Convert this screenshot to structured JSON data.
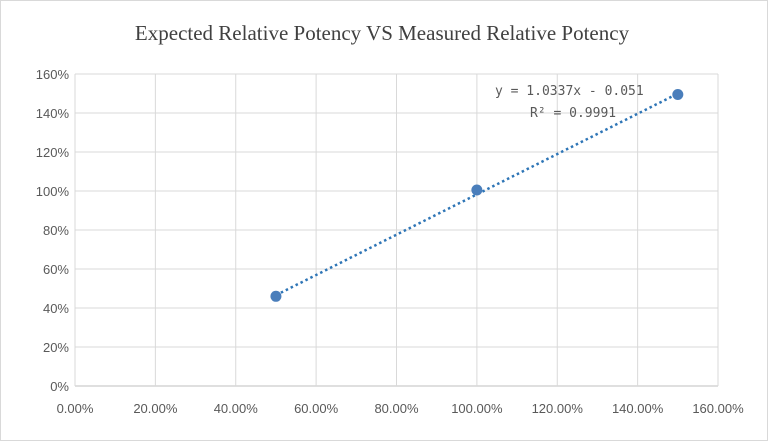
{
  "chart_data": {
    "type": "scatter",
    "title": "Expected Relative Potency VS Measured Relative Potency",
    "xlabel": "",
    "ylabel": "",
    "xlim": [
      0,
      160
    ],
    "ylim": [
      0,
      160
    ],
    "x_ticks": [
      "0.00%",
      "20.00%",
      "40.00%",
      "60.00%",
      "80.00%",
      "100.00%",
      "120.00%",
      "140.00%",
      "160.00%"
    ],
    "y_ticks": [
      "0%",
      "20%",
      "40%",
      "60%",
      "80%",
      "100%",
      "120%",
      "140%",
      "160%"
    ],
    "grid": true,
    "series": [
      {
        "name": "Measured",
        "x": [
          50,
          100,
          150
        ],
        "y": [
          46,
          100.5,
          149.5
        ],
        "color": "#4a7ebb"
      }
    ],
    "trendline": {
      "type": "linear",
      "slope": 1.0337,
      "intercept": -0.051,
      "color": "#2e75b6",
      "equation_text": "y = 1.0337x - 0.051",
      "r2_text": "R² = 0.9991"
    }
  }
}
